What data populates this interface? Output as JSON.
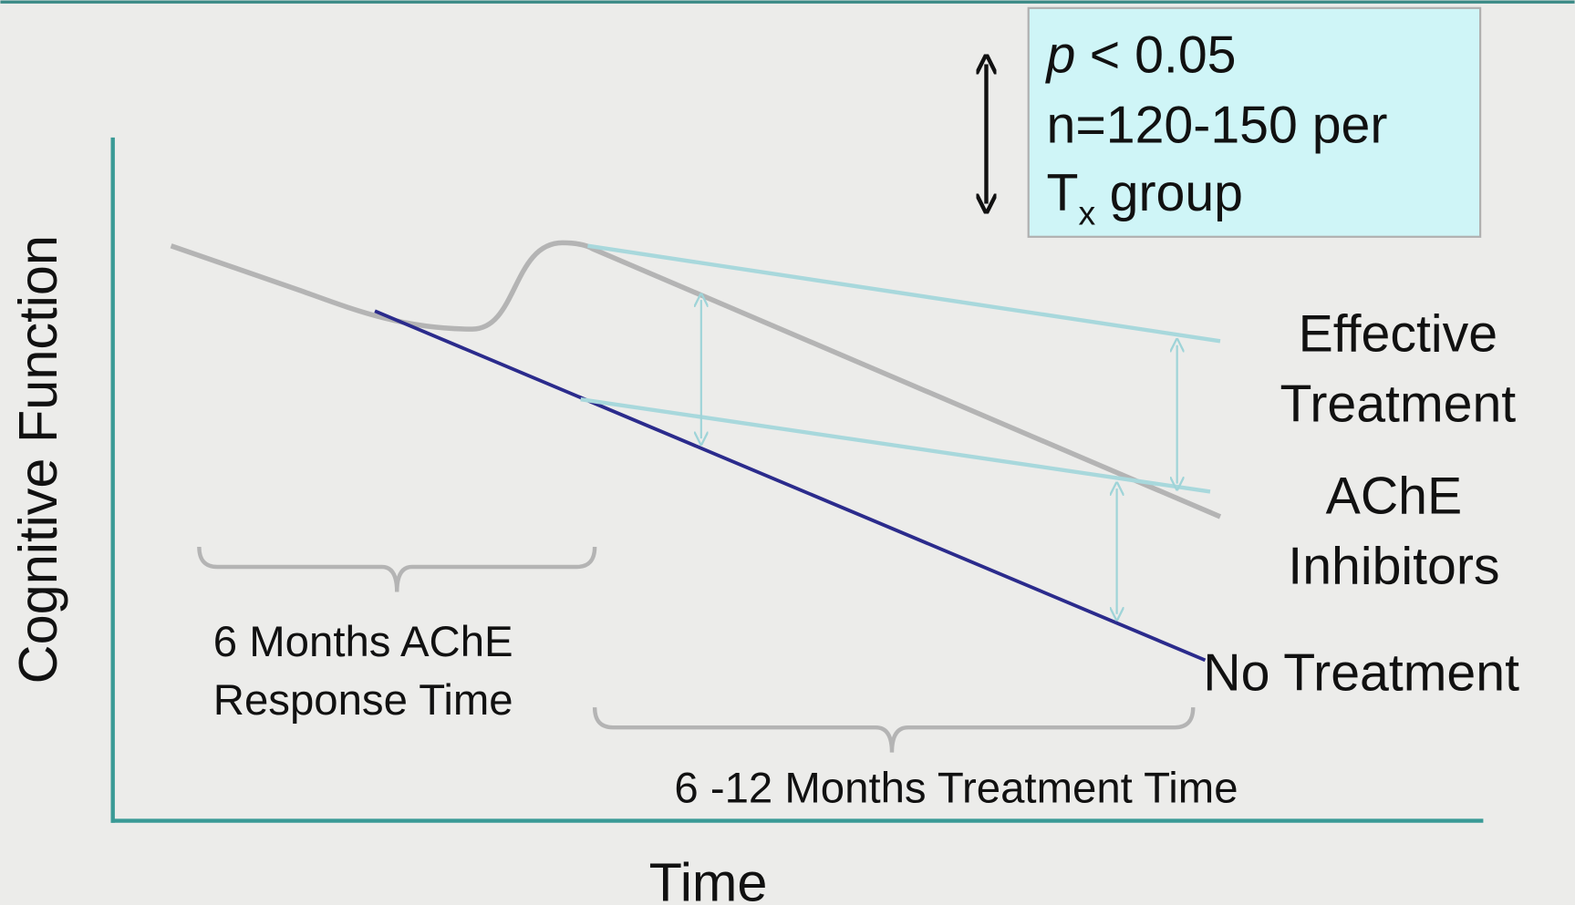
{
  "axes": {
    "y_label": "Cognitive Function",
    "x_label": "Time"
  },
  "stats_box": {
    "p_symbol": "p",
    "p_value": "< 0.05",
    "sample_size": "n=120-150 per",
    "group_letter": "T",
    "group_subscript": "x",
    "group_word": "group"
  },
  "line_labels": {
    "effective": [
      "Effective",
      "Treatment"
    ],
    "ache": [
      "AChE",
      "Inhibitors"
    ],
    "none": "No Treatment"
  },
  "brackets": {
    "response": [
      "6 Months AChE",
      "Response Time"
    ],
    "treatment": "6 -12 Months Treatment Time"
  }
}
